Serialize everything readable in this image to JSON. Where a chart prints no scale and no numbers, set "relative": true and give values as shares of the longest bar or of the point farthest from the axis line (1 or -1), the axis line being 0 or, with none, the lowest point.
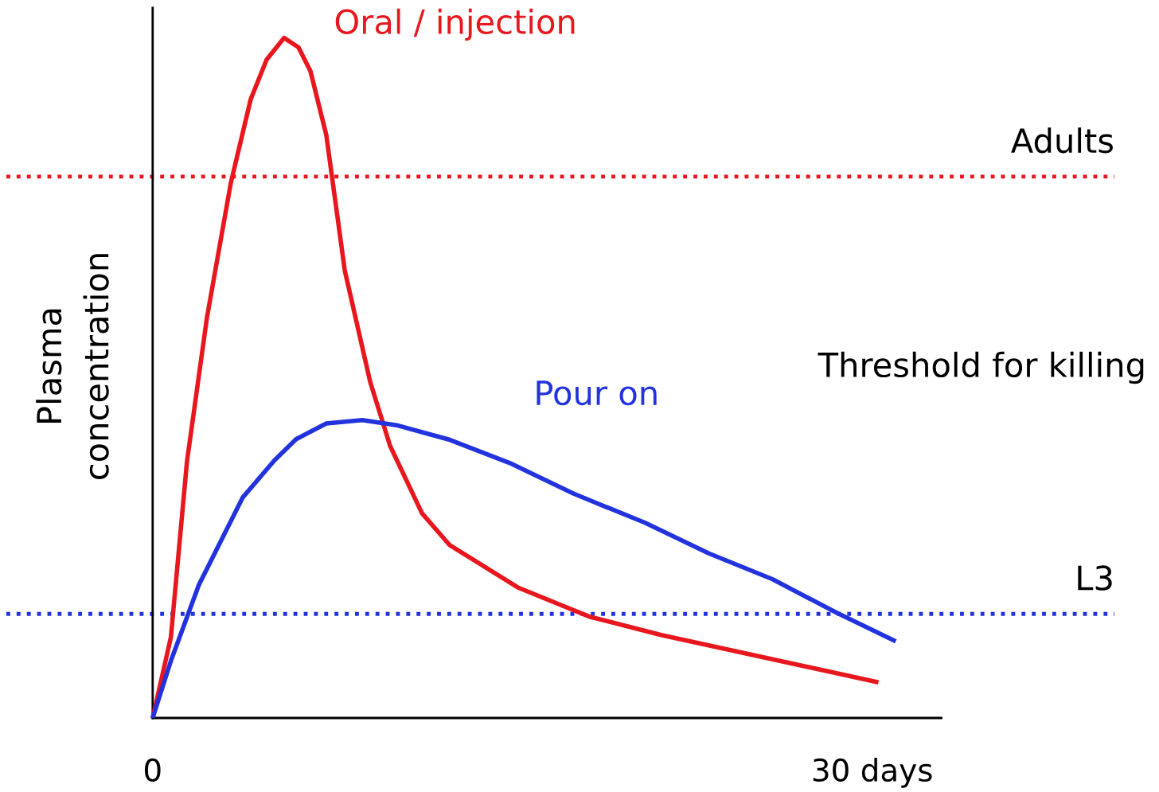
{
  "chart_data": {
    "type": "line",
    "relative": true,
    "ylabel": "Plasma\nconcentration",
    "xlim": [
      -6.1,
      40.1
    ],
    "xticks": [
      0,
      {
        "value": 30,
        "label": "30 days"
      }
    ],
    "series": [
      {
        "name": "Oral / injection",
        "color": "#e8171e",
        "x": [
          0,
          0.76,
          1.43,
          2.26,
          3.26,
          4.09,
          4.75,
          5.48,
          6.08,
          6.58,
          7.24,
          8.01,
          9.07,
          9.9,
          11.23,
          12.39,
          15.22,
          18.21,
          21.2,
          30.17
        ],
        "values": [
          0,
          0.119,
          0.377,
          0.588,
          0.787,
          0.91,
          0.968,
          1.0,
          0.986,
          0.951,
          0.857,
          0.658,
          0.494,
          0.4,
          0.301,
          0.254,
          0.192,
          0.149,
          0.122,
          0.053
        ]
      },
      {
        "name": "Pour on",
        "color": "#2233dd",
        "x": [
          0,
          0.76,
          1.93,
          3.75,
          5.08,
          5.98,
          7.24,
          8.74,
          10.23,
          12.39,
          14.88,
          17.54,
          20.53,
          23.19,
          25.85,
          28.5,
          30.9
        ],
        "values": [
          0,
          0.084,
          0.196,
          0.324,
          0.379,
          0.41,
          0.433,
          0.438,
          0.43,
          0.409,
          0.375,
          0.33,
          0.287,
          0.242,
          0.204,
          0.155,
          0.114
        ]
      }
    ],
    "ref_lines": [
      {
        "axis": "y",
        "value": 0.796,
        "label": "Adults",
        "color": "#e8171e",
        "line_style": "dotted"
      },
      {
        "axis": "y",
        "value": 0.153,
        "label": "L3",
        "color": "#2233dd",
        "line_style": "dotted"
      }
    ],
    "annotations": [
      "Threshold for killing"
    ],
    "legend": false,
    "marker": "none",
    "line_style": "solid"
  }
}
